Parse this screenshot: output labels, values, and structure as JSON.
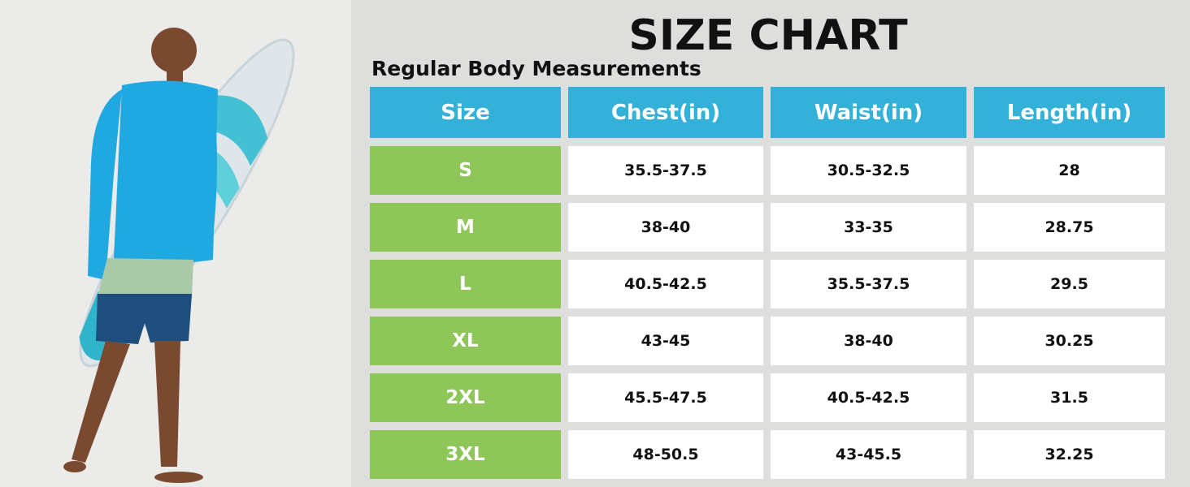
{
  "header": {
    "title": "SIZE CHART",
    "subtitle": "Regular Body Measurements"
  },
  "table": {
    "columns": [
      "Size",
      "Chest(in)",
      "Waist(in)",
      "Length(in)"
    ],
    "rows": [
      [
        "S",
        "35.5-37.5",
        "30.5-32.5",
        "28"
      ],
      [
        "M",
        "38-40",
        "33-35",
        "28.75"
      ],
      [
        "L",
        "40.5-42.5",
        "35.5-37.5",
        "29.5"
      ],
      [
        "XL",
        "43-45",
        "38-40",
        "30.25"
      ],
      [
        "2XL",
        "45.5-47.5",
        "40.5-42.5",
        "31.5"
      ],
      [
        "3XL",
        "48-50.5",
        "43-45.5",
        "32.25"
      ]
    ]
  }
}
